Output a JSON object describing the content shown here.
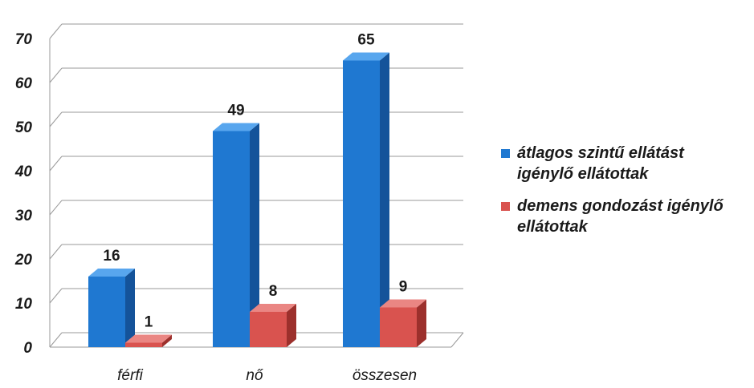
{
  "chart_data": {
    "type": "bar",
    "categories": [
      "férfi",
      "nő",
      "összesen"
    ],
    "series": [
      {
        "name": "átlagos szintű ellátást igénylő ellátottak",
        "values": [
          16,
          49,
          65
        ]
      },
      {
        "name": "demens gondozást igénylő ellátottak",
        "values": [
          1,
          8,
          9
        ]
      }
    ],
    "ylim": [
      0,
      70
    ],
    "yticks": [
      "0",
      "10",
      "20",
      "30",
      "40",
      "50",
      "60",
      "70"
    ],
    "grid": true,
    "legend_position": "right",
    "colors": {
      "series1_front": "#1f78d1",
      "series1_side": "#14539a",
      "series1_top": "#58a6ee",
      "series2_front": "#d9534f",
      "series2_side": "#9c302c",
      "series2_top": "#ea8683"
    }
  }
}
